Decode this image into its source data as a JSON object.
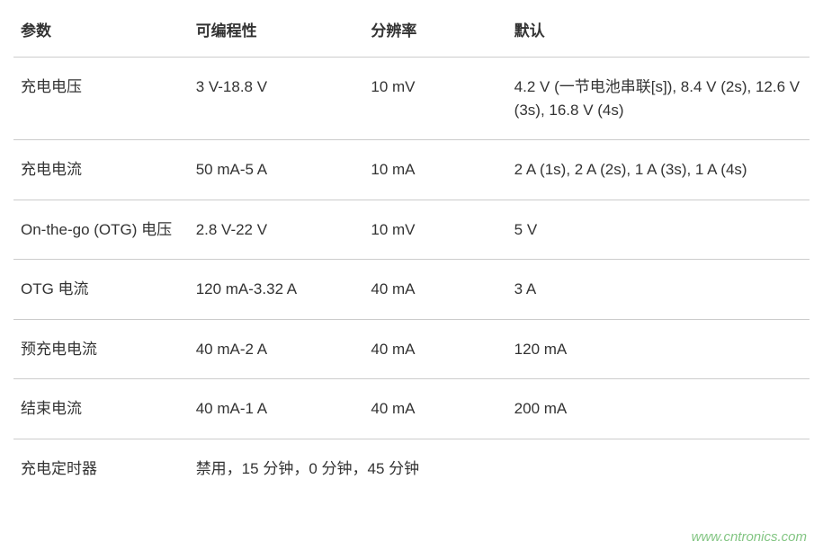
{
  "table": {
    "headers": {
      "param": "参数",
      "programmability": "可编程性",
      "resolution": "分辨率",
      "default": "默认"
    },
    "rows": [
      {
        "param": "充电电压",
        "programmability": "3 V-18.8 V",
        "resolution": "10 mV",
        "default": "4.2 V (一节电池串联[s]), 8.4 V (2s), 12.6 V (3s), 16.8 V (4s)"
      },
      {
        "param": "充电电流",
        "programmability": "50 mA-5 A",
        "resolution": "10 mA",
        "default": "2 A (1s), 2 A (2s), 1 A (3s), 1 A (4s)"
      },
      {
        "param": "On-the-go (OTG) 电压",
        "programmability": "2.8 V-22 V",
        "resolution": "10 mV",
        "default": "5 V"
      },
      {
        "param": "OTG 电流",
        "programmability": "120 mA-3.32 A",
        "resolution": "40 mA",
        "default": "3 A"
      },
      {
        "param": "预充电电流",
        "programmability": "40 mA-2 A",
        "resolution": "40 mA",
        "default": "120 mA"
      },
      {
        "param": "结束电流",
        "programmability": "40 mA-1 A",
        "resolution": "40 mA",
        "default": "200 mA"
      }
    ],
    "timer_row": {
      "param": "充电定时器",
      "value": "禁用，15 分钟，0 分钟，45 分钟"
    }
  },
  "watermark": "www.cntronics.com",
  "styling": {
    "font_family": "Arial, Microsoft YaHei",
    "header_fontsize": 17,
    "header_fontweight": "bold",
    "cell_fontsize": 17,
    "text_color": "#333333",
    "border_color": "#cccccc",
    "background_color": "#ffffff",
    "watermark_color": "#6dbb6d",
    "watermark_fontsize": 15,
    "column_widths": {
      "param_pct": 22,
      "programmability_pct": 22,
      "resolution_pct": 18,
      "default_pct": 38
    },
    "row_padding_v": 20,
    "header_padding_bottom": 18
  }
}
